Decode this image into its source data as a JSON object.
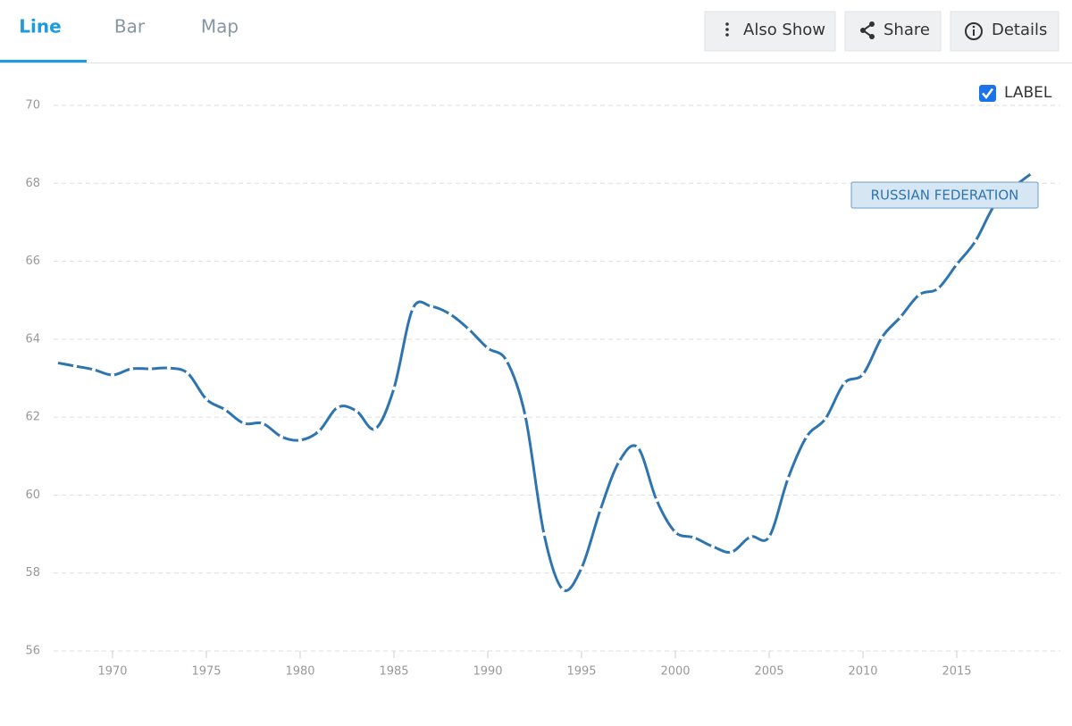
{
  "tabs": [
    "Line",
    "Bar",
    "Map"
  ],
  "buttons": [
    "Also Show",
    "Share",
    "Details"
  ],
  "label_toggle": "LABEL",
  "chart_data": {
    "type": "line",
    "x": [
      1967,
      1968,
      1969,
      1970,
      1971,
      1972,
      1973,
      1974,
      1975,
      1976,
      1977,
      1978,
      1979,
      1980,
      1981,
      1982,
      1983,
      1984,
      1985,
      1986,
      1987,
      1988,
      1989,
      1990,
      1991,
      1992,
      1993,
      1994,
      1995,
      1996,
      1997,
      1998,
      1999,
      2000,
      2001,
      2002,
      2003,
      2004,
      2005,
      2006,
      2007,
      2008,
      2009,
      2010,
      2011,
      2012,
      2013,
      2014,
      2015,
      2016,
      2017,
      2018,
      2019
    ],
    "series": [
      {
        "name": "RUSSIAN FEDERATION",
        "color": "#2e75b0",
        "values": [
          63.4,
          63.31,
          63.22,
          63.08,
          63.24,
          63.24,
          63.26,
          63.13,
          62.46,
          62.19,
          61.84,
          61.84,
          61.5,
          61.41,
          61.64,
          62.25,
          62.16,
          61.7,
          62.74,
          64.78,
          64.84,
          64.64,
          64.25,
          63.77,
          63.45,
          62.03,
          59.0,
          57.58,
          58.13,
          59.62,
          60.86,
          61.22,
          59.87,
          59.05,
          58.91,
          58.68,
          58.54,
          58.93,
          58.93,
          60.42,
          61.5,
          61.96,
          62.87,
          63.1,
          64.04,
          64.57,
          65.14,
          65.3,
          65.92,
          66.52,
          67.43,
          67.89,
          68.26
        ]
      }
    ],
    "xlim": [
      1965.5,
      2020.5
    ],
    "xticks": [
      1970,
      1975,
      1980,
      1985,
      1990,
      1995,
      2000,
      2005,
      2010,
      2015
    ],
    "ylim": [
      56,
      70
    ],
    "yticks": [
      56,
      58,
      60,
      62,
      64,
      66,
      68,
      70
    ],
    "grid": true
  }
}
